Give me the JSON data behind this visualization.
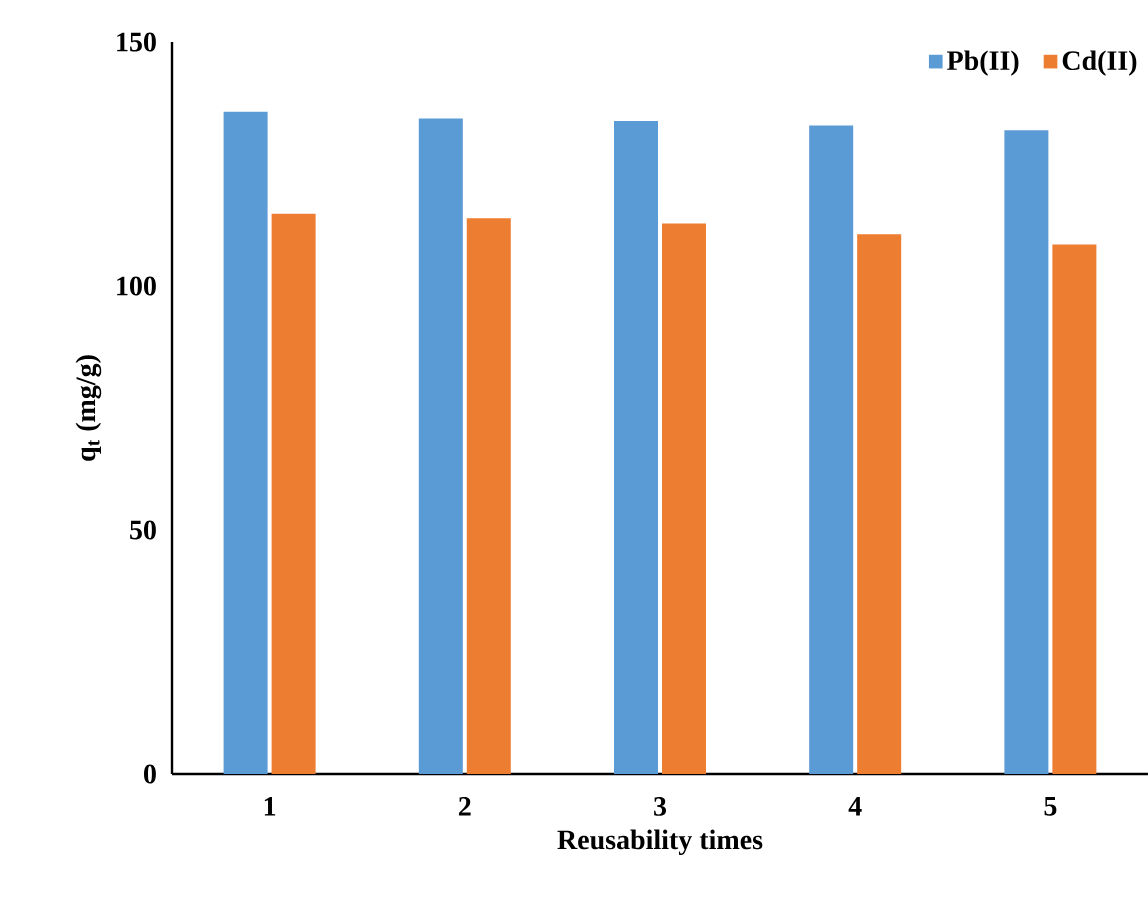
{
  "chart_data": {
    "type": "bar",
    "xlabel": "Reusability times",
    "ylabel": "q$_{t}$ (mg/g)",
    "categories": [
      "1",
      "2",
      "3",
      "4",
      "5"
    ],
    "series": [
      {
        "name": "Pb(II)",
        "color": "#5b9bd5",
        "values": [
          135.7,
          134.3,
          133.8,
          132.9,
          131.9
        ]
      },
      {
        "name": "Cd(II)",
        "color": "#ed7d31",
        "values": [
          114.8,
          113.9,
          112.8,
          110.6,
          108.5
        ]
      }
    ],
    "ylim": [
      0,
      150
    ],
    "yticks": [
      0,
      50,
      100,
      150
    ],
    "grid": false,
    "legend": "top right"
  }
}
